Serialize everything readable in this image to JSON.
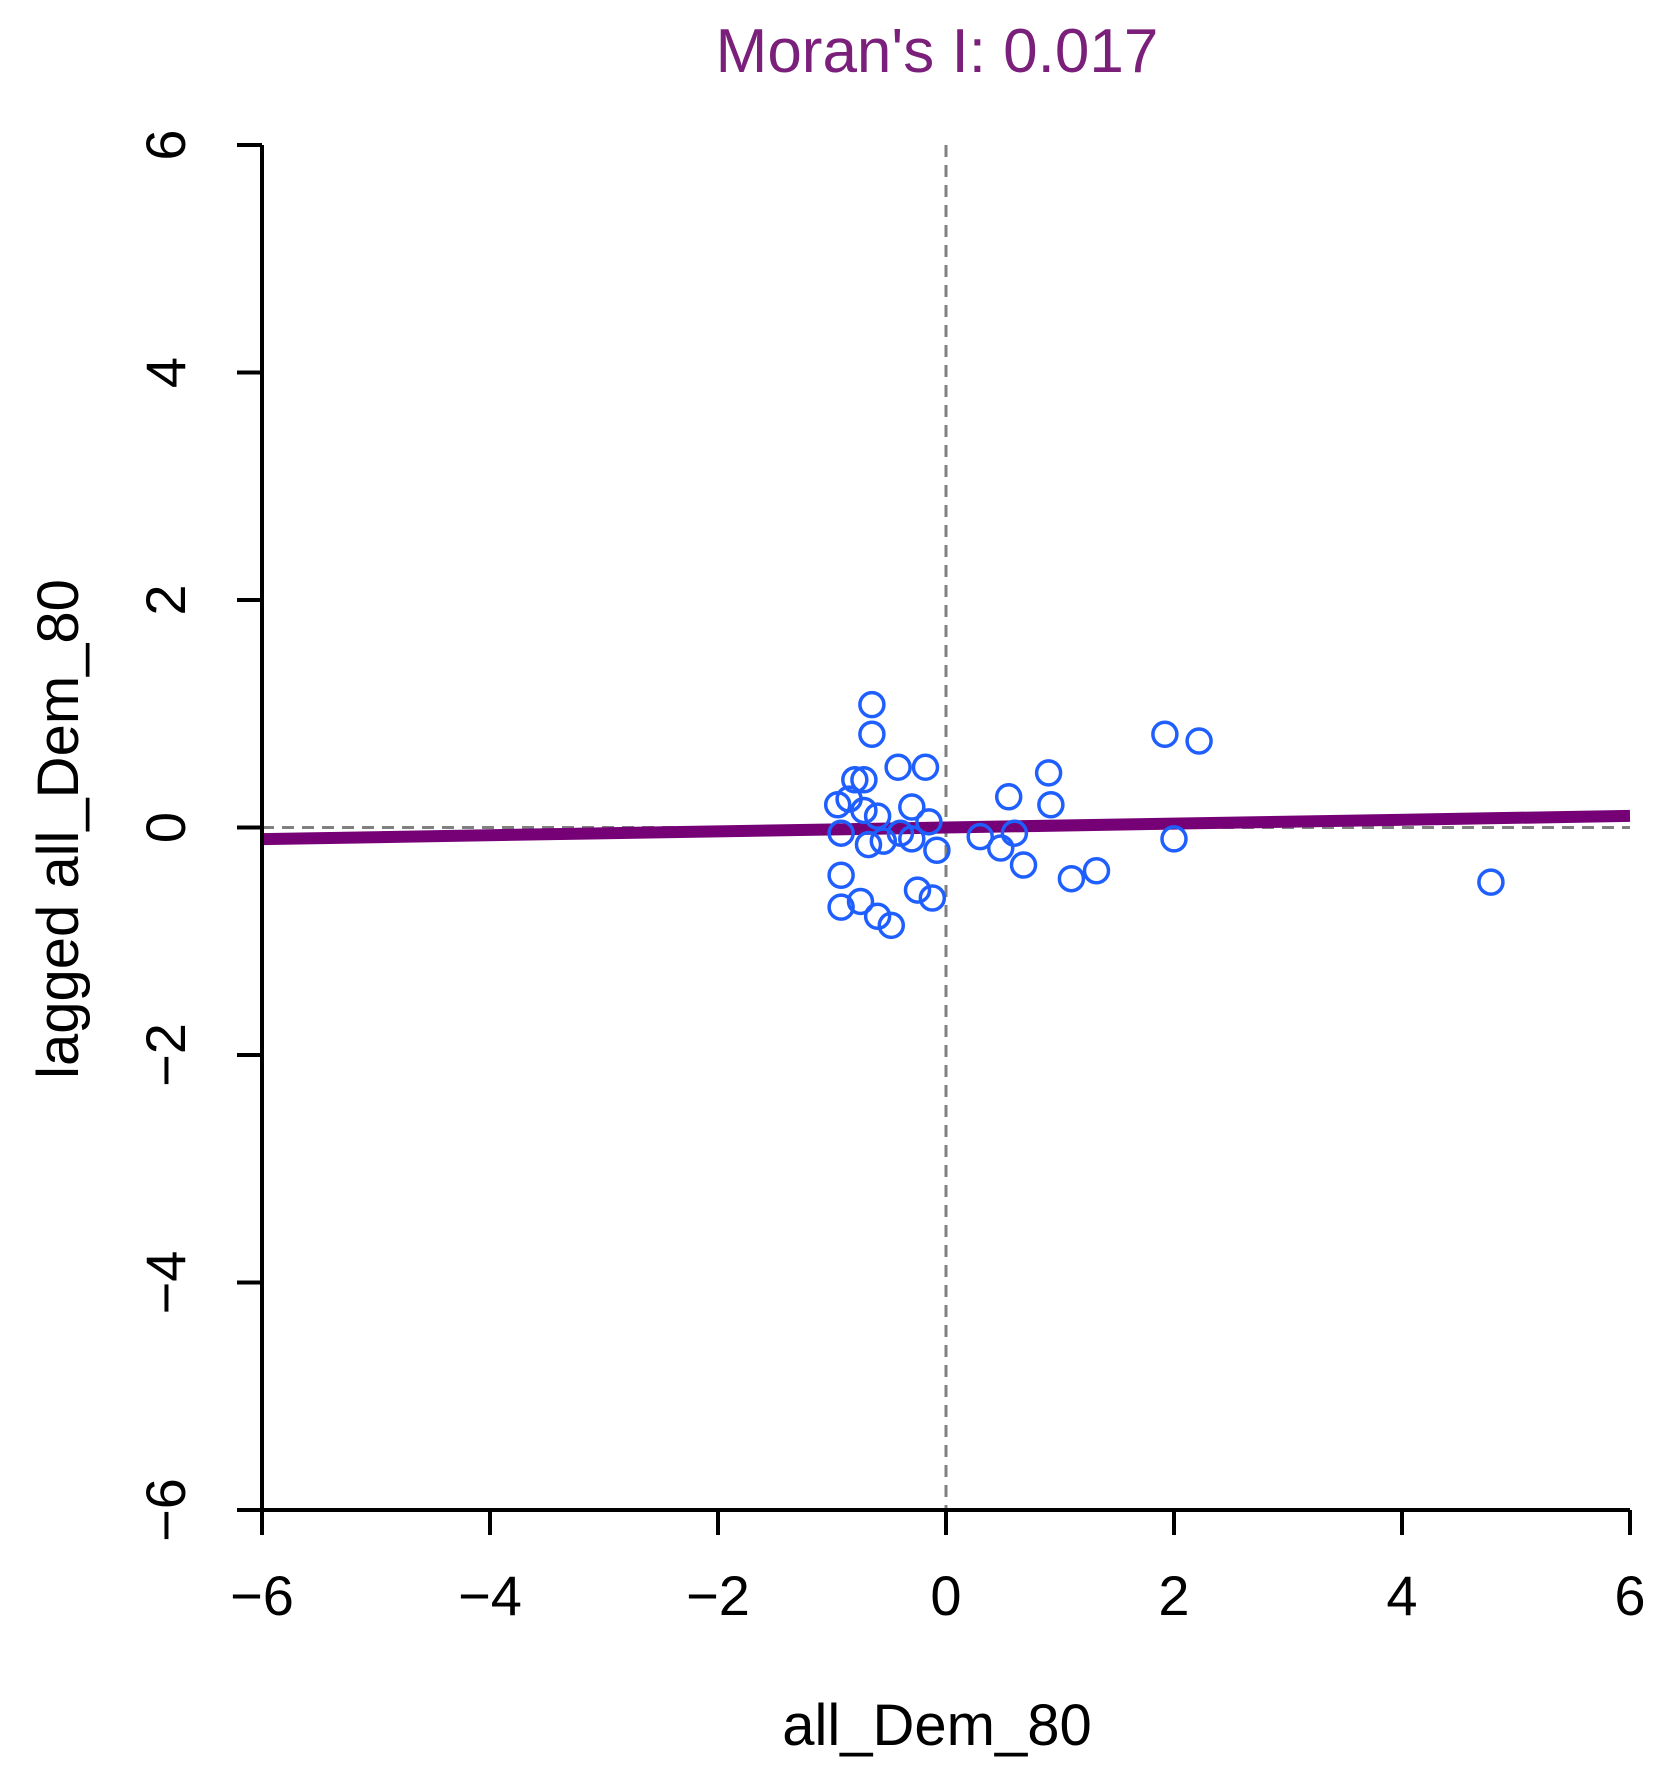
{
  "chart_data": {
    "type": "scatter",
    "title": "Moran's I: 0.017",
    "xlabel": "all_Dem_80",
    "ylabel": "lagged all_Dem_80",
    "xlim": [
      -6,
      6
    ],
    "ylim": [
      -6,
      6
    ],
    "xticks": [
      "−6",
      "−4",
      "−2",
      "0",
      "2",
      "4",
      "6"
    ],
    "yticks": [
      "−6",
      "−4",
      "−2",
      "0",
      "2",
      "4",
      "6"
    ],
    "xtick_values": [
      -6,
      -4,
      -2,
      0,
      2,
      4,
      6
    ],
    "ytick_values": [
      -6,
      -4,
      -2,
      0,
      2,
      4,
      6
    ],
    "grid": false,
    "reference_lines": {
      "x": 0,
      "y": 0,
      "style": "dashed"
    },
    "fit_line": {
      "slope": 0.017,
      "intercept": 0
    },
    "colors": {
      "title": "#7a1f7a",
      "points": "#1f5fff",
      "fit_line": "#760076",
      "reference": "#808080",
      "axes": "#000000"
    },
    "points": [
      {
        "x": -0.65,
        "y": 1.08
      },
      {
        "x": -0.65,
        "y": 0.82
      },
      {
        "x": -0.8,
        "y": 0.42
      },
      {
        "x": -0.72,
        "y": 0.42
      },
      {
        "x": -0.42,
        "y": 0.53
      },
      {
        "x": -0.18,
        "y": 0.53
      },
      {
        "x": -0.95,
        "y": 0.2
      },
      {
        "x": -0.85,
        "y": 0.25
      },
      {
        "x": -0.72,
        "y": 0.15
      },
      {
        "x": -0.6,
        "y": 0.1
      },
      {
        "x": -0.3,
        "y": 0.18
      },
      {
        "x": -0.15,
        "y": 0.05
      },
      {
        "x": -0.92,
        "y": -0.05
      },
      {
        "x": -0.68,
        "y": -0.15
      },
      {
        "x": -0.55,
        "y": -0.12
      },
      {
        "x": -0.4,
        "y": -0.05
      },
      {
        "x": -0.3,
        "y": -0.1
      },
      {
        "x": -0.08,
        "y": -0.2
      },
      {
        "x": -0.92,
        "y": -0.42
      },
      {
        "x": -0.92,
        "y": -0.7
      },
      {
        "x": -0.75,
        "y": -0.65
      },
      {
        "x": -0.6,
        "y": -0.78
      },
      {
        "x": -0.48,
        "y": -0.86
      },
      {
        "x": -0.25,
        "y": -0.55
      },
      {
        "x": -0.12,
        "y": -0.62
      },
      {
        "x": 0.3,
        "y": -0.08
      },
      {
        "x": 0.48,
        "y": -0.18
      },
      {
        "x": 0.55,
        "y": 0.27
      },
      {
        "x": 0.6,
        "y": -0.05
      },
      {
        "x": 0.68,
        "y": -0.33
      },
      {
        "x": 0.9,
        "y": 0.48
      },
      {
        "x": 0.92,
        "y": 0.2
      },
      {
        "x": 1.1,
        "y": -0.45
      },
      {
        "x": 1.32,
        "y": -0.38
      },
      {
        "x": 1.92,
        "y": 0.82
      },
      {
        "x": 2.0,
        "y": -0.1
      },
      {
        "x": 2.22,
        "y": 0.76
      },
      {
        "x": 4.78,
        "y": -0.48
      }
    ]
  }
}
